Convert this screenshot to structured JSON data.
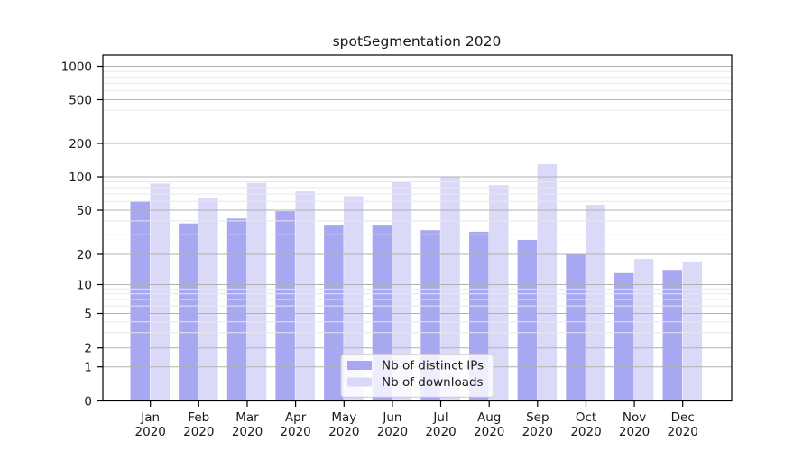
{
  "chart_data": {
    "type": "bar",
    "title": "spotSegmentation 2020",
    "categories": [
      "Jan",
      "Feb",
      "Mar",
      "Apr",
      "May",
      "Jun",
      "Jul",
      "Aug",
      "Sep",
      "Oct",
      "Nov",
      "Dec"
    ],
    "year_label": "2020",
    "series": [
      {
        "name": "Nb of distinct IPs",
        "color": "#a7a7f2",
        "values": [
          60,
          38,
          42,
          49,
          37,
          37,
          33,
          32,
          27,
          20,
          13,
          14
        ]
      },
      {
        "name": "Nb of downloads",
        "color": "#dadaf8",
        "values": [
          87,
          64,
          88,
          74,
          67,
          90,
          101,
          84,
          130,
          56,
          18,
          17
        ]
      }
    ],
    "y_axis": {
      "scale": "symlog",
      "tick_values": [
        0,
        1,
        2,
        5,
        10,
        20,
        50,
        100,
        200,
        500,
        1000
      ],
      "tick_labels": [
        "0",
        "1",
        "2",
        "5",
        "10",
        "20",
        "50",
        "100",
        "200",
        "500",
        "1000"
      ],
      "minor_gridline_values": [
        3,
        4,
        6,
        7,
        8,
        9,
        30,
        40,
        60,
        70,
        80,
        90,
        300,
        400,
        600,
        700,
        800,
        900
      ]
    },
    "legend": {
      "position": "lower-center",
      "entries": [
        "Nb of distinct IPs",
        "Nb of downloads"
      ]
    },
    "colors": {
      "major_grid": "#b0b0b0",
      "minor_grid": "#e8e8e8",
      "spine": "#000000",
      "legend_border": "#cccccc",
      "legend_background": "rgba(255,255,255,0.8)"
    }
  }
}
